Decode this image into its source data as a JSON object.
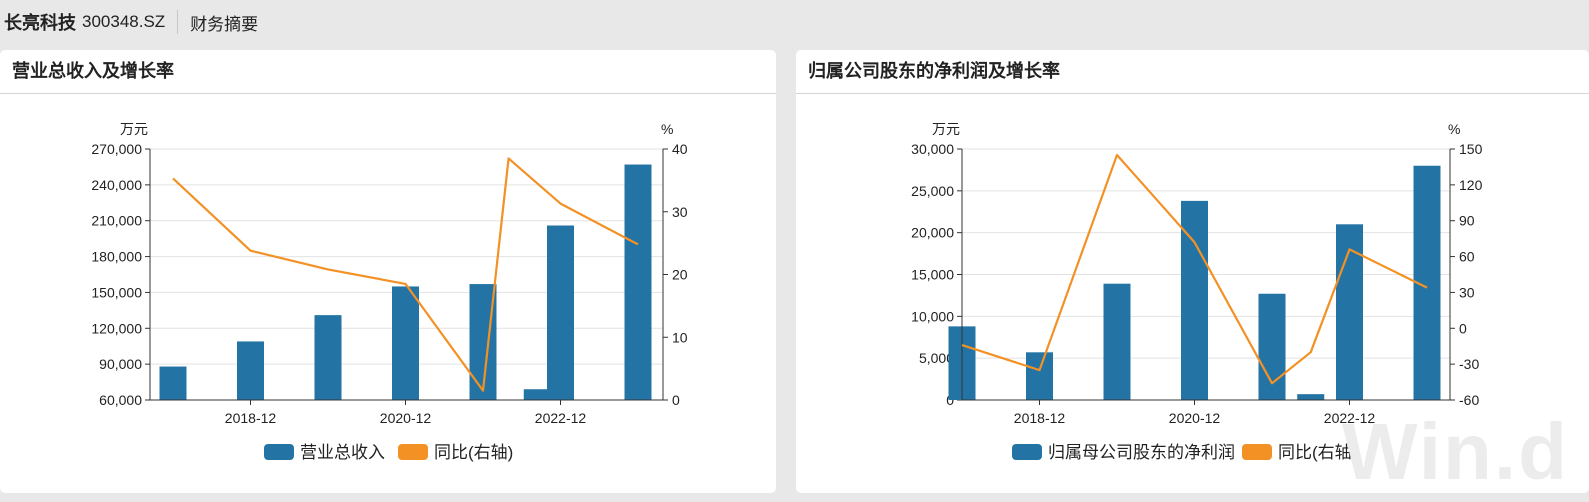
{
  "header": {
    "company": "长亮科技",
    "code": "300348.SZ",
    "section": "财务摘要"
  },
  "watermark": "Win.d",
  "colors": {
    "bar": "#2374a4",
    "line": "#f39125",
    "grid": "#e2e2e2",
    "axis": "#333333"
  },
  "chart_data": [
    {
      "type": "bar",
      "title": "营业总收入及增长率",
      "left_unit": "万元",
      "right_unit": "%",
      "x_ticks": [
        "2018-12",
        "2020-12",
        "2022-12"
      ],
      "left_axis": {
        "min": 60000,
        "max": 270000,
        "step": 30000,
        "labels": [
          "60,000",
          "90,000",
          "120,000",
          "150,000",
          "180,000",
          "210,000",
          "240,000",
          "270,000"
        ]
      },
      "right_axis": {
        "min": 0,
        "max": 40,
        "step": 10,
        "labels": [
          "0",
          "10",
          "20",
          "30",
          "40"
        ]
      },
      "bars": [
        {
          "pos": 0,
          "value": 88000
        },
        {
          "pos": 1,
          "value": 109000
        },
        {
          "pos": 2,
          "value": 131000
        },
        {
          "pos": 3,
          "value": 155000
        },
        {
          "pos": 4,
          "value": 157000
        },
        {
          "pos": 4.7,
          "value": 69000
        },
        {
          "pos": 5,
          "value": 206000
        },
        {
          "pos": 6,
          "value": 257000
        }
      ],
      "line": [
        {
          "pos": 0,
          "value": 35.3
        },
        {
          "pos": 1,
          "value": 23.8
        },
        {
          "pos": 2,
          "value": 20.8
        },
        {
          "pos": 3,
          "value": 18.5
        },
        {
          "pos": 4,
          "value": 1.5
        },
        {
          "pos": 4.33,
          "value": 38.5
        },
        {
          "pos": 5,
          "value": 31.3
        },
        {
          "pos": 6,
          "value": 24.8
        }
      ],
      "legend": {
        "bar": "营业总收入",
        "line": "同比(右轴)"
      }
    },
    {
      "type": "bar",
      "title": "归属公司股东的净利润及增长率",
      "left_unit": "万元",
      "right_unit": "%",
      "x_ticks": [
        "2018-12",
        "2020-12",
        "2022-12"
      ],
      "left_axis": {
        "min": 0,
        "max": 30000,
        "step": 5000,
        "labels": [
          "0",
          "5,000",
          "10,000",
          "15,000",
          "20,000",
          "25,000",
          "30,000"
        ]
      },
      "right_axis": {
        "min": -60,
        "max": 150,
        "step": 30,
        "labels": [
          "-60",
          "-30",
          "0",
          "30",
          "60",
          "90",
          "120",
          "150"
        ]
      },
      "bars": [
        {
          "pos": 0,
          "value": 8800
        },
        {
          "pos": 1,
          "value": 5700
        },
        {
          "pos": 2,
          "value": 13900
        },
        {
          "pos": 3,
          "value": 23800
        },
        {
          "pos": 4,
          "value": 12700
        },
        {
          "pos": 4.5,
          "value": 700
        },
        {
          "pos": 5,
          "value": 21000
        },
        {
          "pos": 6,
          "value": 28000
        }
      ],
      "line": [
        {
          "pos": 0,
          "value": -14
        },
        {
          "pos": 1,
          "value": -35
        },
        {
          "pos": 2,
          "value": 145
        },
        {
          "pos": 3,
          "value": 72
        },
        {
          "pos": 4,
          "value": -46
        },
        {
          "pos": 4.5,
          "value": -20
        },
        {
          "pos": 5,
          "value": 66
        },
        {
          "pos": 6,
          "value": 34
        }
      ],
      "legend": {
        "bar": "归属母公司股东的净利润",
        "line": "同比(右轴)"
      }
    }
  ]
}
